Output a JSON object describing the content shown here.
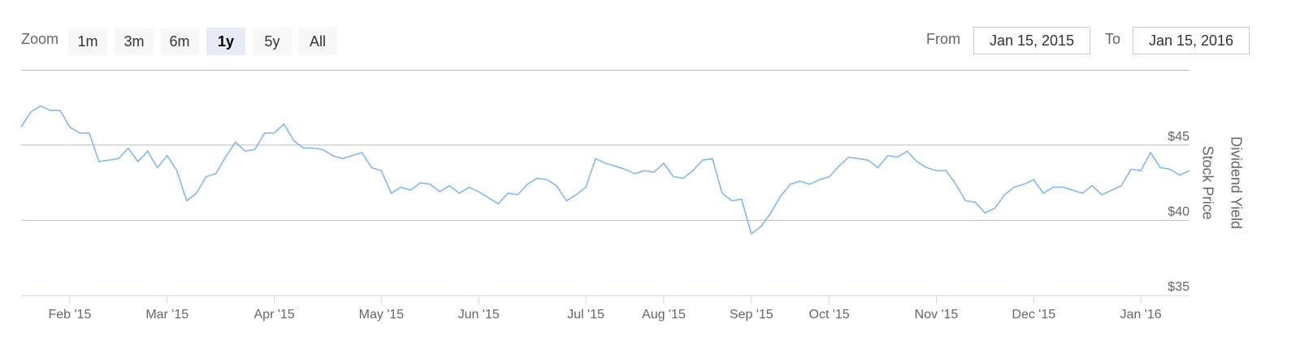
{
  "range_selector": {
    "label": "Zoom",
    "buttons": [
      "1m",
      "3m",
      "6m",
      "1y",
      "5y",
      "All"
    ],
    "selected": 3,
    "from_label": "From",
    "from": "Jan 15, 2015",
    "to_label": "To",
    "to": "Jan 15, 2016"
  },
  "chart_data": {
    "type": "line",
    "categories": [
      null,
      null,
      null,
      null,
      null,
      "Feb '15",
      null,
      null,
      null,
      null,
      null,
      null,
      null,
      null,
      null,
      "Mar '15",
      null,
      null,
      null,
      null,
      null,
      null,
      null,
      null,
      null,
      null,
      "Apr '15",
      null,
      null,
      null,
      null,
      null,
      null,
      null,
      null,
      null,
      null,
      "May '15",
      null,
      null,
      null,
      null,
      null,
      null,
      null,
      null,
      null,
      "Jun '15",
      null,
      null,
      null,
      null,
      null,
      null,
      null,
      null,
      null,
      null,
      "Jul '15",
      null,
      null,
      null,
      null,
      null,
      null,
      null,
      "Aug '15",
      null,
      null,
      null,
      null,
      null,
      null,
      null,
      null,
      "Sep '15",
      null,
      null,
      null,
      null,
      null,
      null,
      null,
      "Oct '15",
      null,
      null,
      null,
      null,
      null,
      null,
      null,
      null,
      null,
      null,
      "Nov '15",
      null,
      null,
      null,
      null,
      null,
      null,
      null,
      null,
      null,
      "Dec '15",
      null,
      null,
      null,
      null,
      null,
      null,
      null,
      null,
      null,
      null,
      "Jan '16",
      null,
      null,
      null,
      null,
      null
    ],
    "series": [
      {
        "name": "Stock Price",
        "color": "#7cb5ec",
        "values": [
          46.2,
          47.2,
          47.6,
          47.3,
          47.3,
          46.2,
          45.8,
          45.8,
          43.9,
          44.0,
          44.1,
          44.8,
          43.9,
          44.6,
          43.5,
          44.3,
          43.3,
          41.3,
          41.8,
          42.9,
          43.1,
          44.2,
          45.2,
          44.6,
          44.7,
          45.8,
          45.8,
          46.4,
          45.3,
          44.8,
          44.8,
          44.7,
          44.3,
          44.1,
          44.3,
          44.5,
          43.5,
          43.3,
          41.8,
          42.2,
          42.0,
          42.5,
          42.4,
          41.9,
          42.3,
          41.8,
          42.2,
          41.9,
          41.5,
          41.1,
          41.8,
          41.7,
          42.4,
          42.8,
          42.7,
          42.3,
          41.3,
          41.7,
          42.2,
          44.1,
          43.8,
          43.6,
          43.4,
          43.1,
          43.3,
          43.2,
          43.8,
          42.9,
          42.8,
          43.3,
          44.0,
          44.1,
          41.8,
          41.3,
          41.4,
          39.1,
          39.6,
          40.5,
          41.6,
          42.4,
          42.6,
          42.4,
          42.7,
          42.9,
          43.6,
          44.2,
          44.1,
          44.0,
          43.5,
          44.3,
          44.2,
          44.6,
          43.9,
          43.5,
          43.3,
          43.3,
          42.4,
          41.3,
          41.2,
          40.5,
          40.8,
          41.7,
          42.2,
          42.4,
          42.7,
          41.8,
          42.2,
          42.2,
          42.0,
          41.8,
          42.3,
          41.7,
          42.0,
          42.3,
          43.4,
          43.3,
          44.5,
          43.5,
          43.4,
          43.0,
          43.3
        ]
      }
    ],
    "y_axis_titles": [
      "Stock Price",
      "Dividend Yield"
    ],
    "ylim": [
      35,
      50
    ],
    "yticks": [
      {
        "value": 35,
        "label": "$35"
      },
      {
        "value": 40,
        "label": "$40"
      },
      {
        "value": 45,
        "label": "$45"
      }
    ],
    "grid": true
  }
}
